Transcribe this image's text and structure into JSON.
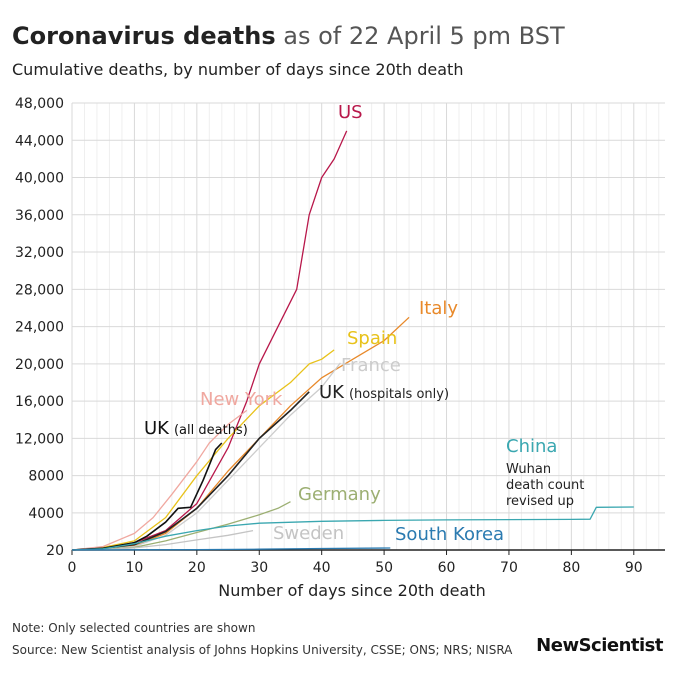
{
  "header": {
    "title": "Coronavirus deaths",
    "title_suffix": " as of 22 April 5 pm BST",
    "subtitle": "Cumulative deaths, by number of days since 20th death"
  },
  "footer": {
    "note": "Note: Only selected countries are shown",
    "source": "Source: New Scientist analysis of Johns Hopkins University, CSSE; ONS; NRS; NISRA",
    "logo": "NewScientist"
  },
  "colors": {
    "US": "#b8174a",
    "Italy": "#e8892a",
    "Spain": "#e8c21a",
    "France": "#cccccc",
    "New York": "#f0a8a0",
    "UK (hospitals only)": "#222222",
    "UK (all deaths)": "#111111",
    "Germany": "#9caf72",
    "Sweden": "#c4c4c4",
    "China": "#3aa7b0",
    "South Korea": "#2a7ab0"
  },
  "chart_data": {
    "type": "line",
    "xlabel": "Number of days since 20th death",
    "ylabel": "",
    "xlim": [
      0,
      95
    ],
    "ylim": [
      20,
      48000
    ],
    "x_ticks": [
      0,
      10,
      20,
      30,
      40,
      50,
      60,
      70,
      80,
      90
    ],
    "y_ticks": [
      20,
      4000,
      8000,
      12000,
      16000,
      20000,
      24000,
      28000,
      32000,
      36000,
      40000,
      44000,
      48000
    ],
    "y_tick_labels": [
      "20",
      "4000",
      "8000",
      "12,000",
      "16,000",
      "20,000",
      "24,000",
      "28,000",
      "32,000",
      "36,000",
      "40,000",
      "44,000",
      "48,000"
    ],
    "grid": true,
    "annotations": [
      "Wuhan",
      "death count",
      "revised up"
    ],
    "series": [
      {
        "name": "US",
        "label": "US",
        "x": [
          0,
          5,
          10,
          15,
          20,
          25,
          28,
          30,
          33,
          36,
          38,
          40,
          42,
          44
        ],
        "y": [
          20,
          200,
          800,
          2100,
          5000,
          11000,
          16000,
          20000,
          24000,
          28000,
          36000,
          40000,
          42000,
          45000
        ]
      },
      {
        "name": "Italy",
        "label": "Italy",
        "x": [
          0,
          5,
          10,
          15,
          20,
          25,
          30,
          35,
          40,
          45,
          50,
          54
        ],
        "y": [
          20,
          150,
          500,
          1800,
          4500,
          8500,
          12000,
          15500,
          18500,
          20500,
          22500,
          25000
        ]
      },
      {
        "name": "Spain",
        "label": "Spain",
        "x": [
          0,
          5,
          10,
          15,
          20,
          25,
          30,
          35,
          38,
          40,
          42
        ],
        "y": [
          20,
          300,
          1000,
          3500,
          8000,
          12000,
          15500,
          18000,
          20000,
          20500,
          21500
        ]
      },
      {
        "name": "France",
        "label": "France",
        "x": [
          0,
          5,
          10,
          15,
          20,
          25,
          30,
          35,
          40,
          43
        ],
        "y": [
          20,
          100,
          400,
          1600,
          4000,
          7500,
          11000,
          14500,
          17500,
          20100
        ]
      },
      {
        "name": "New York",
        "label": "New York",
        "x": [
          0,
          5,
          10,
          13,
          16,
          20,
          22,
          25,
          28
        ],
        "y": [
          20,
          400,
          1800,
          3500,
          6000,
          9500,
          11500,
          13500,
          15000
        ]
      },
      {
        "name": "UK (hospitals only)",
        "label": "UK",
        "label_suffix": "(hospitals only)",
        "x": [
          0,
          5,
          10,
          15,
          20,
          25,
          30,
          35,
          38
        ],
        "y": [
          20,
          200,
          600,
          2000,
          4500,
          8000,
          12000,
          15000,
          17000
        ]
      },
      {
        "name": "UK (all deaths)",
        "label": "UK",
        "label_suffix": "(all deaths)",
        "x": [
          0,
          5,
          10,
          12,
          15,
          17,
          19,
          21,
          23,
          24
        ],
        "y": [
          20,
          200,
          800,
          1500,
          3000,
          4500,
          4600,
          7500,
          10800,
          11500
        ]
      },
      {
        "name": "Germany",
        "label": "Germany",
        "x": [
          0,
          5,
          10,
          15,
          20,
          25,
          30,
          33,
          35
        ],
        "y": [
          20,
          80,
          300,
          1000,
          1900,
          2800,
          3800,
          4500,
          5200
        ]
      },
      {
        "name": "Sweden",
        "label": "Sweden",
        "x": [
          0,
          5,
          10,
          15,
          20,
          25,
          29
        ],
        "y": [
          20,
          60,
          250,
          600,
          1100,
          1600,
          2100
        ]
      },
      {
        "name": "China",
        "label": "China",
        "x": [
          0,
          5,
          10,
          15,
          20,
          25,
          30,
          40,
          50,
          60,
          70,
          80,
          83,
          84,
          90
        ],
        "y": [
          20,
          150,
          700,
          1500,
          2100,
          2600,
          2900,
          3100,
          3200,
          3250,
          3280,
          3300,
          3330,
          4600,
          4640
        ]
      },
      {
        "name": "South Korea",
        "label": "South Korea",
        "x": [
          0,
          10,
          20,
          30,
          40,
          51
        ],
        "y": [
          20,
          40,
          60,
          110,
          180,
          240
        ]
      }
    ]
  }
}
